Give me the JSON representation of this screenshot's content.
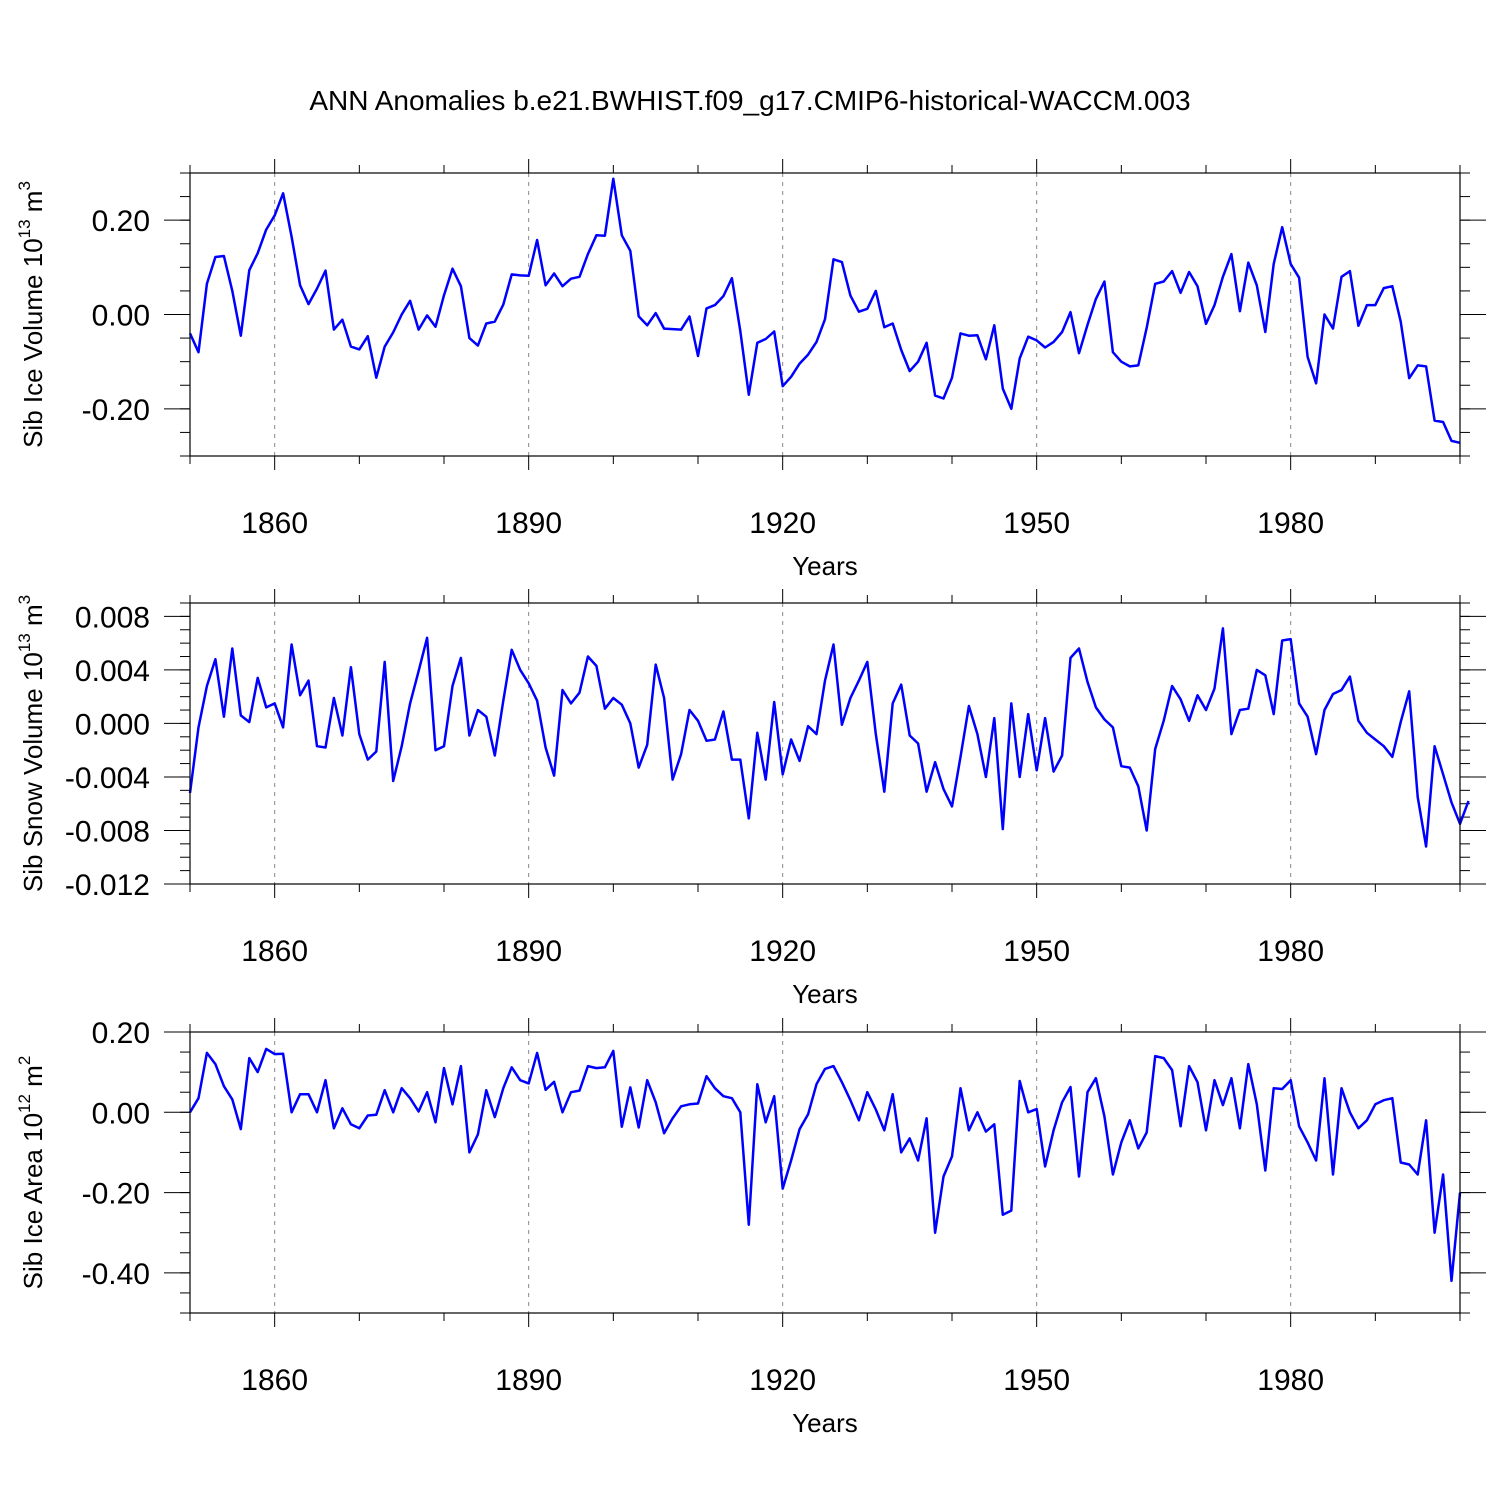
{
  "title": "ANN Anomalies b.e21.BWHIST.f09_g17.CMIP6-historical-WACCM.003",
  "colors": {
    "line": "#0000ff",
    "axis": "#000000",
    "grid": "#888888"
  },
  "chart_data": [
    {
      "type": "line",
      "ylabel": "Sib Ice Volume 10",
      "ylabel_sup": "13",
      "ylabel_unit": " m",
      "ylabel_unit_sup": "3",
      "xlabel": "Years",
      "xlim": [
        1850,
        2000
      ],
      "ylim": [
        -0.3,
        0.3
      ],
      "xticks": [
        "1860",
        "1890",
        "1920",
        "1950",
        "1980"
      ],
      "yticks": [
        "0.20",
        "0.00",
        "-0.20"
      ],
      "x_start": 1850,
      "values": [
        -0.04,
        -0.08,
        0.065,
        0.122,
        0.124,
        0.05,
        -0.045,
        0.094,
        0.13,
        0.18,
        0.21,
        0.257,
        0.165,
        0.062,
        0.022,
        0.055,
        0.093,
        -0.032,
        -0.011,
        -0.068,
        -0.074,
        -0.046,
        -0.134,
        -0.068,
        -0.038,
        0.0,
        0.029,
        -0.032,
        -0.002,
        -0.026,
        0.041,
        0.097,
        0.06,
        -0.05,
        -0.066,
        -0.019,
        -0.015,
        0.021,
        0.085,
        0.083,
        0.082,
        0.158,
        0.062,
        0.087,
        0.06,
        0.076,
        0.08,
        0.128,
        0.168,
        0.167,
        0.288,
        0.168,
        0.135,
        -0.004,
        -0.023,
        0.003,
        -0.03,
        -0.031,
        -0.032,
        -0.004,
        -0.088,
        0.013,
        0.02,
        0.039,
        0.077,
        -0.035,
        -0.17,
        -0.06,
        -0.052,
        -0.036,
        -0.152,
        -0.132,
        -0.104,
        -0.085,
        -0.058,
        -0.01,
        0.117,
        0.111,
        0.04,
        0.006,
        0.012,
        0.05,
        -0.027,
        -0.019,
        -0.075,
        -0.12,
        -0.1,
        -0.06,
        -0.172,
        -0.178,
        -0.134,
        -0.04,
        -0.045,
        -0.044,
        -0.095,
        -0.023,
        -0.157,
        -0.2,
        -0.093,
        -0.047,
        -0.055,
        -0.07,
        -0.058,
        -0.037,
        0.005,
        -0.082,
        -0.022,
        0.033,
        0.07,
        -0.08,
        -0.1,
        -0.11,
        -0.108,
        -0.028,
        0.065,
        0.07,
        0.092,
        0.046,
        0.09,
        0.06,
        -0.02,
        0.02,
        0.08,
        0.128,
        0.007,
        0.11,
        0.062,
        -0.037,
        0.107,
        0.185,
        0.107,
        0.078,
        -0.09,
        -0.146,
        0.0,
        -0.03,
        0.08,
        0.092,
        -0.024,
        0.02,
        0.02,
        0.056,
        0.06,
        -0.015,
        -0.135,
        -0.108,
        -0.11,
        -0.225,
        -0.228,
        -0.268,
        -0.272
      ]
    },
    {
      "type": "line",
      "ylabel": "Sib Snow Volume 10",
      "ylabel_sup": "13",
      "ylabel_unit": " m",
      "ylabel_unit_sup": "3",
      "xlabel": "Years",
      "xlim": [
        1850,
        2000
      ],
      "ylim": [
        -0.012,
        0.009
      ],
      "xticks": [
        "1860",
        "1890",
        "1920",
        "1950",
        "1980"
      ],
      "yticks": [
        "0.008",
        "0.004",
        "0.000",
        "-0.004",
        "-0.008",
        "-0.012"
      ],
      "x_start": 1850,
      "values": [
        -0.0052,
        -0.0003,
        0.0028,
        0.0048,
        0.0005,
        0.0056,
        0.0006,
        0.0001,
        0.0034,
        0.0012,
        0.0015,
        -0.0003,
        0.0059,
        0.0021,
        0.0032,
        -0.0017,
        -0.0018,
        0.0019,
        -0.0009,
        0.0042,
        -0.0008,
        -0.0027,
        -0.0021,
        0.0046,
        -0.0043,
        -0.0017,
        0.0015,
        0.0039,
        0.0064,
        -0.002,
        -0.0017,
        0.0028,
        0.0049,
        -0.0009,
        0.001,
        0.0005,
        -0.0024,
        0.0017,
        0.0055,
        0.004,
        0.003,
        0.0017,
        -0.0018,
        -0.0039,
        0.0025,
        0.0015,
        0.0023,
        0.005,
        0.0043,
        0.0011,
        0.0019,
        0.0014,
        0.0,
        -0.0033,
        -0.0016,
        0.0044,
        0.0019,
        -0.0042,
        -0.0023,
        0.001,
        0.0002,
        -0.0013,
        -0.0012,
        0.0009,
        -0.0027,
        -0.0027,
        -0.0071,
        -0.0007,
        -0.0042,
        0.0016,
        -0.0038,
        -0.0012,
        -0.0028,
        -0.0002,
        -0.0008,
        0.0032,
        0.0059,
        -0.0001,
        0.0019,
        0.0032,
        0.0046,
        -0.0008,
        -0.0051,
        0.0015,
        0.0029,
        -0.0009,
        -0.0015,
        -0.0051,
        -0.0029,
        -0.0049,
        -0.0062,
        -0.0025,
        0.0013,
        -0.0008,
        -0.004,
        0.0004,
        -0.0079,
        0.0015,
        -0.004,
        0.0007,
        -0.0035,
        0.0004,
        -0.0036,
        -0.0024,
        0.0049,
        0.0056,
        0.0031,
        0.0012,
        0.0003,
        -0.0003,
        -0.0032,
        -0.0033,
        -0.0047,
        -0.008,
        -0.0019,
        0.0002,
        0.0028,
        0.0018,
        0.0002,
        0.0021,
        0.001,
        0.0026,
        0.0071,
        -0.0008,
        0.001,
        0.0011,
        0.004,
        0.0036,
        0.0007,
        0.0062,
        0.0063,
        0.0015,
        0.0005,
        -0.0023,
        0.001,
        0.0022,
        0.0025,
        0.0035,
        0.0002,
        -0.0007,
        -0.0012,
        -0.0017,
        -0.0025,
        0.0001,
        0.0024,
        -0.0055,
        -0.0092,
        -0.0017,
        -0.0038,
        -0.0059,
        -0.0075,
        -0.0058
      ]
    },
    {
      "type": "line",
      "ylabel": "Sib Ice Area 10",
      "ylabel_sup": "12",
      "ylabel_unit": " m",
      "ylabel_unit_sup": "2",
      "xlabel": "Years",
      "xlim": [
        1850,
        2000
      ],
      "ylim": [
        -0.5,
        0.2
      ],
      "xticks": [
        "1860",
        "1890",
        "1920",
        "1950",
        "1980"
      ],
      "yticks": [
        "0.20",
        "0.00",
        "-0.20",
        "-0.40"
      ],
      "x_start": 1850,
      "values": [
        0.0,
        0.035,
        0.148,
        0.12,
        0.065,
        0.032,
        -0.042,
        0.135,
        0.1,
        0.158,
        0.145,
        0.146,
        0.0,
        0.045,
        0.045,
        0.0,
        0.08,
        -0.04,
        0.01,
        -0.03,
        -0.04,
        -0.008,
        -0.006,
        0.055,
        0.0,
        0.06,
        0.035,
        0.002,
        0.05,
        -0.025,
        0.11,
        0.02,
        0.115,
        -0.1,
        -0.055,
        0.055,
        -0.012,
        0.06,
        0.112,
        0.08,
        0.072,
        0.148,
        0.056,
        0.076,
        0.0,
        0.05,
        0.054,
        0.115,
        0.11,
        0.112,
        0.153,
        -0.036,
        0.062,
        -0.038,
        0.08,
        0.025,
        -0.052,
        -0.015,
        0.015,
        0.02,
        0.022,
        0.09,
        0.06,
        0.04,
        0.035,
        0.0,
        -0.28,
        0.07,
        -0.025,
        0.04,
        -0.19,
        -0.12,
        -0.042,
        -0.005,
        0.07,
        0.108,
        0.115,
        0.075,
        0.03,
        -0.02,
        0.05,
        0.007,
        -0.045,
        0.045,
        -0.1,
        -0.065,
        -0.12,
        -0.015,
        -0.3,
        -0.16,
        -0.11,
        0.06,
        -0.045,
        0.0,
        -0.048,
        -0.03,
        -0.255,
        -0.245,
        0.078,
        0.0,
        0.008,
        -0.135,
        -0.045,
        0.025,
        0.063,
        -0.16,
        0.05,
        0.085,
        -0.01,
        -0.155,
        -0.075,
        -0.02,
        -0.09,
        -0.05,
        0.14,
        0.135,
        0.105,
        -0.035,
        0.115,
        0.075,
        -0.045,
        0.08,
        0.018,
        0.085,
        -0.04,
        0.12,
        0.02,
        -0.145,
        0.06,
        0.058,
        0.08,
        -0.035,
        -0.075,
        -0.12,
        0.085,
        -0.155,
        0.06,
        0.0,
        -0.04,
        -0.02,
        0.02,
        0.03,
        0.035,
        -0.125,
        -0.13,
        -0.155,
        -0.02,
        -0.3,
        -0.155,
        -0.42,
        -0.2
      ]
    }
  ]
}
